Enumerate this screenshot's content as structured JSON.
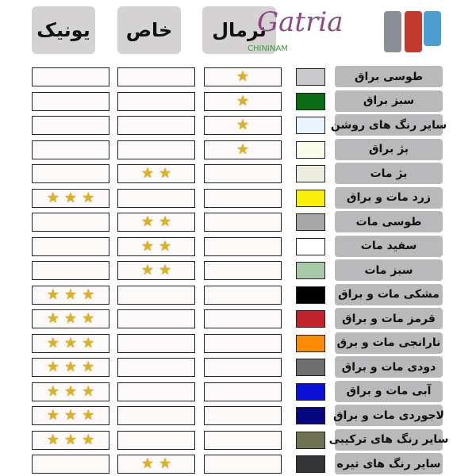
{
  "header": {
    "unique": "یونیک",
    "special": "خاص",
    "normal": "نرمال"
  },
  "logo": {
    "brand": "Gatria",
    "sub": "CHININAM",
    "product_colors": [
      "#8a8f96",
      "#c0392b",
      "#4a9fd0"
    ]
  },
  "rows": [
    {
      "label": "طوسی براق",
      "color": "#c9cacd",
      "normal": 1,
      "special": 0,
      "unique": 0
    },
    {
      "label": "سبز براق",
      "color": "#0a6b12",
      "normal": 1,
      "special": 0,
      "unique": 0
    },
    {
      "label": "سایر رنگ های روشن",
      "color": "#e8f3fb",
      "normal": 1,
      "special": 0,
      "unique": 0
    },
    {
      "label": "بژ براق",
      "color": "#fbfbea",
      "normal": 1,
      "special": 0,
      "unique": 0
    },
    {
      "label": "بژ مات",
      "color": "#ececdf",
      "normal": 0,
      "special": 2,
      "unique": 0
    },
    {
      "label": "زرد مات و براق",
      "color": "#f7f10a",
      "normal": 0,
      "special": 0,
      "unique": 3
    },
    {
      "label": "طوسی مات",
      "color": "#a6a6a6",
      "normal": 0,
      "special": 2,
      "unique": 0
    },
    {
      "label": "سفید مات",
      "color": "#ffffff",
      "normal": 0,
      "special": 2,
      "unique": 0
    },
    {
      "label": "سبز مات",
      "color": "#a7c9a5",
      "normal": 0,
      "special": 2,
      "unique": 0
    },
    {
      "label": "مشکی مات و براق",
      "color": "#000000",
      "normal": 0,
      "special": 0,
      "unique": 3
    },
    {
      "label": "قرمز مات و براق",
      "color": "#c0242a",
      "normal": 0,
      "special": 0,
      "unique": 3
    },
    {
      "label": "نارانجی مات و برق",
      "color": "#ff8c00",
      "normal": 0,
      "special": 0,
      "unique": 3
    },
    {
      "label": "دودی مات و براق",
      "color": "#6e6e6e",
      "normal": 0,
      "special": 0,
      "unique": 3
    },
    {
      "label": "آبی مات و براق",
      "color": "#0c10d6",
      "normal": 0,
      "special": 0,
      "unique": 3
    },
    {
      "label": "لاجوردی مات و براق",
      "color": "#06067e",
      "normal": 0,
      "special": 0,
      "unique": 3
    },
    {
      "label": "سایر رنگ های ترکیبی",
      "color": "#6e7152",
      "normal": 0,
      "special": 0,
      "unique": 3
    },
    {
      "label": "سایر رنگ های تیره",
      "color": "#333436",
      "normal": 0,
      "special": 2,
      "unique": 0
    }
  ]
}
